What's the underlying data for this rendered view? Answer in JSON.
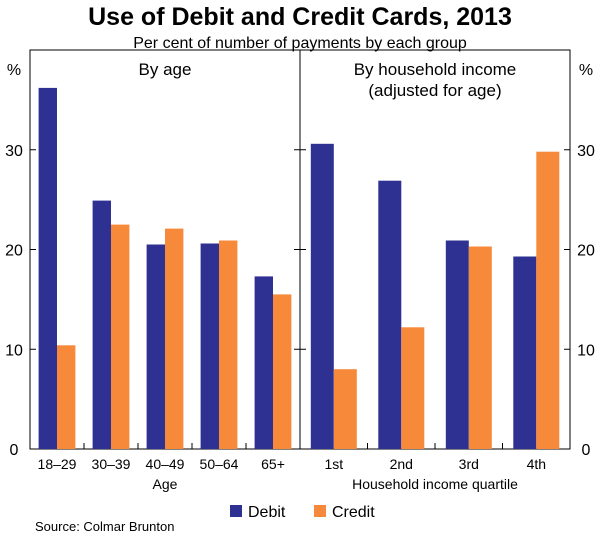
{
  "chart_data": {
    "type": "bar",
    "title": "Use of Debit and Credit Cards, 2013",
    "subtitle": "Per cent of number of payments by each group",
    "unit_left": "%",
    "unit_right": "%",
    "ylim": [
      0,
      40
    ],
    "yticks": [
      0,
      10,
      20,
      30
    ],
    "series_names": [
      "Debit",
      "Credit"
    ],
    "colors": {
      "debit": "#2E3192",
      "credit": "#F7893B"
    },
    "panels": [
      {
        "title_lines": [
          "By age"
        ],
        "xlabel": "Age",
        "categories": [
          "18–29",
          "30–39",
          "40–49",
          "50–64",
          "65+"
        ],
        "series": [
          {
            "name": "Debit",
            "values": [
              36.2,
              24.9,
              20.5,
              20.6,
              17.3
            ]
          },
          {
            "name": "Credit",
            "values": [
              10.4,
              22.5,
              22.1,
              20.9,
              15.5
            ]
          }
        ]
      },
      {
        "title_lines": [
          "By household income",
          "(adjusted for age)"
        ],
        "xlabel": "Household income quartile",
        "categories": [
          "1st",
          "2nd",
          "3rd",
          "4th"
        ],
        "series": [
          {
            "name": "Debit",
            "values": [
              30.6,
              26.9,
              20.9,
              19.3
            ]
          },
          {
            "name": "Credit",
            "values": [
              8.0,
              12.2,
              20.3,
              29.8
            ]
          }
        ]
      }
    ],
    "legend": [
      "Debit",
      "Credit"
    ],
    "source": "Source: Colmar Brunton"
  }
}
